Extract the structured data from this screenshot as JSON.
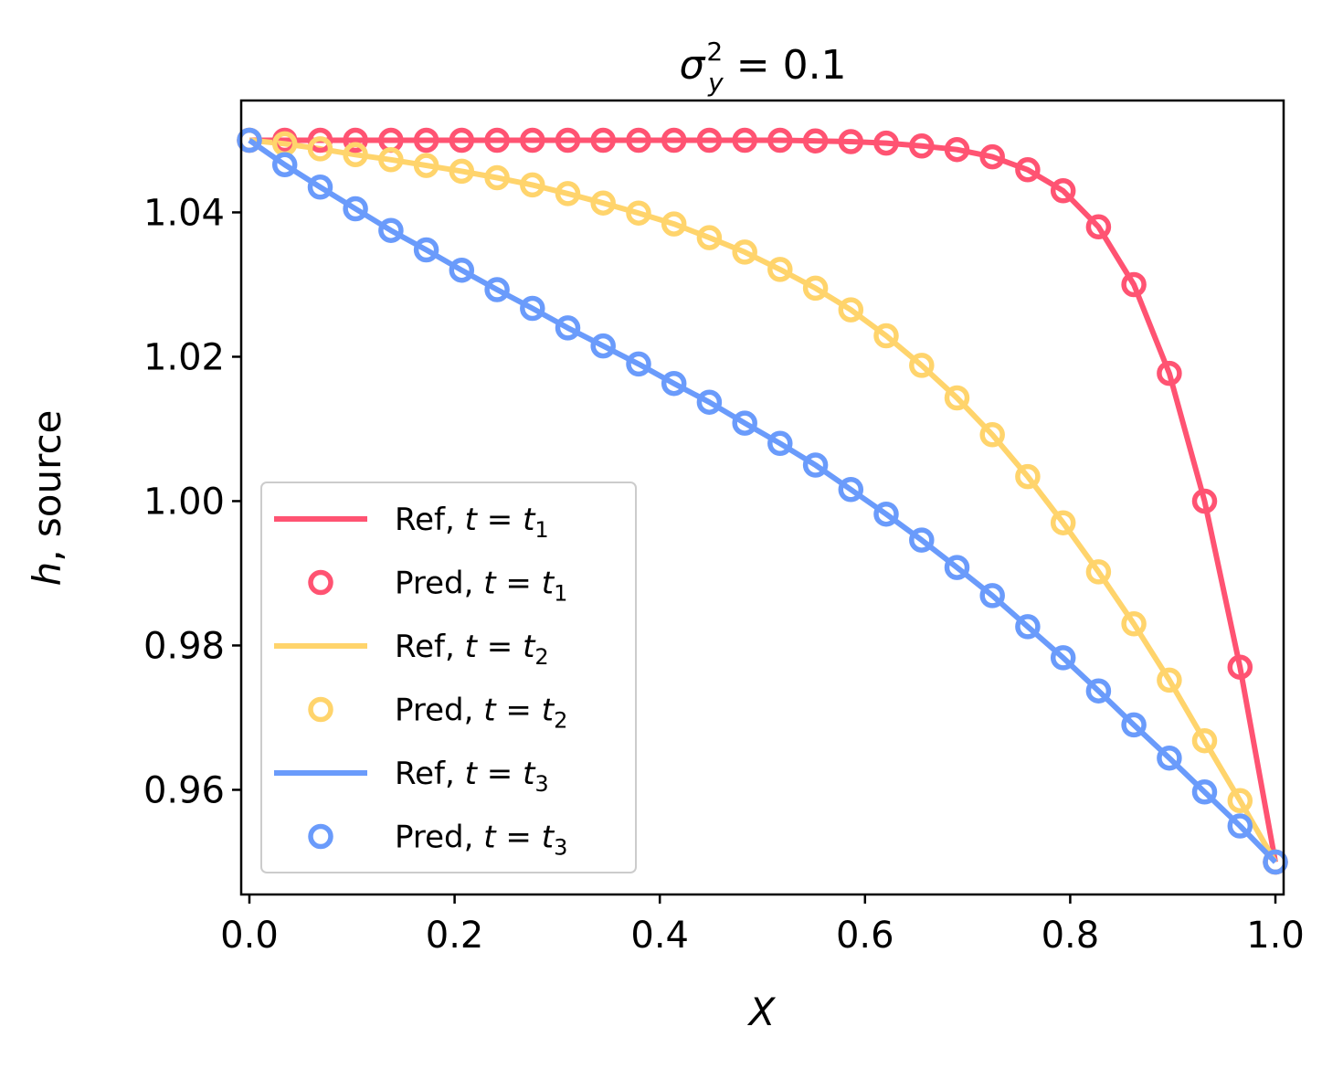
{
  "chart_data": {
    "type": "line",
    "title": "σ²ᵧ = 0.1",
    "title_parts": {
      "base": "σ",
      "sup": "2",
      "sub": "y",
      "rest": " = 0.1"
    },
    "xlabel": "X",
    "ylabel_italic": "h",
    "ylabel_rest": ", source",
    "xlim": [
      -0.008,
      1.008
    ],
    "ylim": [
      0.9455,
      1.0555
    ],
    "xticks": [
      0.0,
      0.2,
      0.4,
      0.6,
      0.8,
      1.0
    ],
    "xtick_labels": [
      "0.0",
      "0.2",
      "0.4",
      "0.6",
      "0.8",
      "1.0"
    ],
    "yticks": [
      0.96,
      0.98,
      1.0,
      1.02,
      1.04
    ],
    "ytick_labels": [
      "0.96",
      "0.98",
      "1.00",
      "1.02",
      "1.04"
    ],
    "grid": false,
    "legend_position": "lower-left",
    "x": [
      0.0,
      0.0345,
      0.069,
      0.1034,
      0.1379,
      0.1724,
      0.2069,
      0.2414,
      0.2759,
      0.3103,
      0.3448,
      0.3793,
      0.4138,
      0.4483,
      0.4828,
      0.5172,
      0.5517,
      0.5862,
      0.6207,
      0.6552,
      0.6897,
      0.7241,
      0.7586,
      0.7931,
      0.8276,
      0.8621,
      0.8966,
      0.931,
      0.9655,
      1.0
    ],
    "series": [
      {
        "name": "Ref, t = t₁",
        "pred_name": "Pred, t = t₁",
        "label_word": "Ref, ",
        "pred_word": "Pred, ",
        "sub": "1",
        "color": "#ff5372",
        "values": [
          1.05,
          1.05,
          1.05,
          1.05,
          1.05,
          1.05,
          1.05,
          1.05,
          1.05,
          1.05,
          1.05,
          1.05,
          1.05,
          1.05,
          1.05,
          1.05,
          1.0499,
          1.0498,
          1.0496,
          1.0492,
          1.0487,
          1.0477,
          1.0459,
          1.043,
          1.038,
          1.03,
          1.0177,
          1.0,
          0.977,
          0.95
        ]
      },
      {
        "name": "Ref, t = t₂",
        "pred_name": "Pred, t = t₂",
        "label_word": "Ref, ",
        "pred_word": "Pred, ",
        "sub": "2",
        "color": "#ffd46c",
        "values": [
          1.05,
          1.0495,
          1.0488,
          1.048,
          1.0473,
          1.0465,
          1.0457,
          1.0448,
          1.0438,
          1.0426,
          1.0413,
          1.0399,
          1.0384,
          1.0365,
          1.0345,
          1.0321,
          1.0295,
          1.0265,
          1.0229,
          1.0188,
          1.0143,
          1.0092,
          1.0034,
          0.997,
          0.9902,
          0.983,
          0.9752,
          0.9668,
          0.9585,
          0.95
        ]
      },
      {
        "name": "Ref, t = t₃",
        "pred_name": "Pred, t = t₃",
        "label_word": "Ref, ",
        "pred_word": "Pred, ",
        "sub": "3",
        "color": "#6a9bfb",
        "values": [
          1.05,
          1.0466,
          1.0435,
          1.0405,
          1.0375,
          1.0348,
          1.032,
          1.0293,
          1.0267,
          1.024,
          1.0215,
          1.019,
          1.0163,
          1.0137,
          1.0108,
          1.008,
          1.005,
          1.0016,
          0.9982,
          0.9946,
          0.9908,
          0.9869,
          0.9826,
          0.9783,
          0.9737,
          0.969,
          0.9644,
          0.9597,
          0.955,
          0.95
        ]
      }
    ]
  }
}
